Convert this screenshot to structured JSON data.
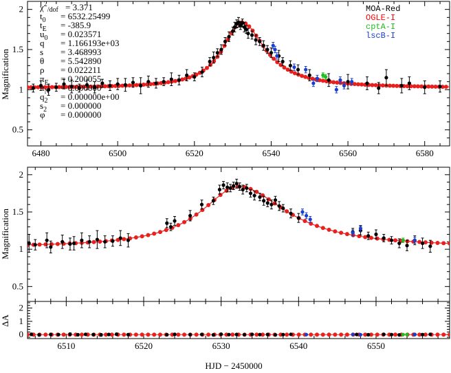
{
  "xlabel": "HJD − 2450000",
  "colors": {
    "model": "#e8201e",
    "MOA-Red": "#000000",
    "OGLE-I": "#ff0000",
    "cptA-I": "#22bb22",
    "lscB-I": "#1a3fcc"
  },
  "params": [
    {
      "label": "χ²/dof",
      "sep": "=",
      "value": "3.371"
    },
    {
      "label": "t₀",
      "sep": "=",
      "value": "6532.25499"
    },
    {
      "label": "t_E",
      "sep": "=",
      "value": "-385.9"
    },
    {
      "label": "u₀",
      "sep": "=",
      "value": "0.023571"
    },
    {
      "label": "q",
      "sep": "=",
      "value": "1.166193e+03"
    },
    {
      "label": "s",
      "sep": "=",
      "value": "3.468993"
    },
    {
      "label": "θ",
      "sep": "=",
      "value": "5.542890"
    },
    {
      "label": "ρ",
      "sep": "=",
      "value": "0.022211"
    },
    {
      "label": "π_E",
      "sep": "=",
      "value": "0.200055"
    },
    {
      "label": "π_N",
      "sep": "=",
      "value": "0.000000"
    },
    {
      "label": "q₂",
      "sep": "=",
      "value": "0.000000e+00"
    },
    {
      "label": "s₂",
      "sep": "=",
      "value": "0.000000"
    },
    {
      "label": "φ",
      "sep": "=",
      "value": "0.000000"
    }
  ],
  "chart_data": [
    {
      "type": "scatter",
      "title": "",
      "xlabel": "",
      "ylabel": "Magnification",
      "xlim": [
        6476.5,
        6586.5
      ],
      "ylim": [
        0.3,
        2.1
      ],
      "x_ticks": [
        6480,
        6500,
        6520,
        6540,
        6560,
        6580
      ],
      "y_ticks": [
        0.5,
        1,
        1.5,
        2
      ],
      "y_tick_labels": [
        "0.5",
        "1",
        "1.5",
        "2"
      ],
      "legend": [
        "MOA-Red",
        "OGLE-I",
        "cptA-I",
        "lscB-I"
      ],
      "legend_position": "top-right",
      "model": {
        "t0": 6532.3,
        "peak": 1.84,
        "rise": 6.0,
        "fall": 7.5
      },
      "series": [
        {
          "name": "MOA-Red",
          "x": [
            6478,
            6480,
            6482,
            6484,
            6486,
            6488,
            6490,
            6492,
            6494,
            6496,
            6498,
            6500,
            6502,
            6504,
            6506,
            6508,
            6510,
            6512,
            6514,
            6516,
            6518,
            6520,
            6522,
            6524,
            6525,
            6526,
            6527,
            6528,
            6529,
            6530,
            6530.5,
            6531,
            6531.5,
            6532,
            6532.5,
            6533,
            6533.5,
            6534,
            6535,
            6536,
            6537,
            6538,
            6539,
            6540,
            6542,
            6543,
            6545,
            6547,
            6550,
            6555,
            6560,
            6565,
            6568,
            6570,
            6574,
            6576,
            6580,
            6584
          ],
          "y": [
            1.02,
            1.05,
            1.0,
            1.03,
            1.07,
            1.04,
            1.02,
            1.06,
            1.03,
            1.08,
            1.05,
            1.07,
            1.06,
            1.09,
            1.05,
            1.1,
            1.08,
            1.1,
            1.13,
            1.12,
            1.18,
            1.16,
            1.22,
            1.35,
            1.4,
            1.46,
            1.5,
            1.6,
            1.66,
            1.73,
            1.78,
            1.82,
            1.84,
            1.8,
            1.83,
            1.78,
            1.75,
            1.7,
            1.68,
            1.62,
            1.6,
            1.55,
            1.5,
            1.46,
            1.42,
            1.35,
            1.3,
            1.25,
            1.18,
            1.12,
            1.1,
            1.08,
            1.02,
            1.15,
            1.05,
            1.08,
            1.03,
            1.04
          ],
          "err": [
            0.05,
            0.06,
            0.07,
            0.05,
            0.06,
            0.08,
            0.05,
            0.06,
            0.07,
            0.05,
            0.06,
            0.07,
            0.08,
            0.06,
            0.1,
            0.07,
            0.06,
            0.05,
            0.08,
            0.06,
            0.07,
            0.05,
            0.06,
            0.05,
            0.07,
            0.05,
            0.06,
            0.05,
            0.06,
            0.05,
            0.06,
            0.05,
            0.06,
            0.05,
            0.05,
            0.06,
            0.05,
            0.06,
            0.05,
            0.06,
            0.05,
            0.06,
            0.05,
            0.06,
            0.07,
            0.05,
            0.06,
            0.06,
            0.07,
            0.08,
            0.09,
            0.08,
            0.07,
            0.1,
            0.09,
            0.08,
            0.08,
            0.07
          ]
        },
        {
          "name": "OGLE-I",
          "x": [],
          "y": [],
          "err": []
        },
        {
          "name": "cptA-I",
          "x": [
            6553.5,
            6554.2
          ],
          "y": [
            1.18,
            1.16
          ],
          "err": [
            0.03,
            0.03
          ]
        },
        {
          "name": "lscB-I",
          "x": [
            6540.5,
            6541,
            6541.5,
            6546,
            6549,
            6551,
            6552,
            6557,
            6558,
            6559,
            6561
          ],
          "y": [
            1.55,
            1.5,
            1.42,
            1.28,
            1.25,
            1.08,
            1.14,
            1.0,
            1.12,
            1.05,
            1.1
          ],
          "err": [
            0.04,
            0.04,
            0.04,
            0.04,
            0.04,
            0.04,
            0.04,
            0.04,
            0.04,
            0.04,
            0.04
          ]
        }
      ]
    },
    {
      "type": "scatter",
      "title": "",
      "xlabel": "",
      "ylabel": "Magnification",
      "xlim": [
        6505,
        6559.5
      ],
      "ylim": [
        0.3,
        2.1
      ],
      "x_ticks": [
        6510,
        6520,
        6530,
        6540,
        6550
      ],
      "y_ticks": [
        0.5,
        1,
        1.5,
        2
      ],
      "y_tick_labels": [
        "0.5",
        "1",
        "1.5",
        "2"
      ],
      "model": {
        "t0": 6532.3,
        "peak": 1.84,
        "rise": 6.0,
        "fall": 7.5
      },
      "series": [
        {
          "name": "MOA-Red",
          "x": [
            6505.2,
            6506,
            6507.5,
            6508,
            6509.5,
            6510.5,
            6511,
            6512,
            6513,
            6514,
            6515,
            6516,
            6517,
            6518,
            6523,
            6523.5,
            6524,
            6526,
            6527.5,
            6529,
            6529.8,
            6530.3,
            6530.8,
            6531.2,
            6531.6,
            6532,
            6532.4,
            6532.8,
            6533.3,
            6533.8,
            6534.3,
            6535,
            6535.5,
            6536,
            6536.5,
            6537,
            6537.5,
            6538,
            6539,
            6540,
            6547,
            6548,
            6549,
            6550,
            6551,
            6552,
            6553,
            6554,
            6555,
            6556,
            6557
          ],
          "y": [
            1.08,
            1.06,
            1.12,
            1.03,
            1.1,
            1.07,
            1.08,
            1.12,
            1.1,
            1.13,
            1.1,
            1.11,
            1.15,
            1.12,
            1.35,
            1.3,
            1.38,
            1.45,
            1.6,
            1.65,
            1.8,
            1.86,
            1.83,
            1.82,
            1.85,
            1.88,
            1.84,
            1.8,
            1.82,
            1.75,
            1.72,
            1.7,
            1.65,
            1.62,
            1.6,
            1.66,
            1.58,
            1.55,
            1.48,
            1.42,
            1.23,
            1.25,
            1.18,
            1.2,
            1.15,
            1.12,
            1.08,
            1.05,
            1.12,
            1.08,
            1.04
          ],
          "err": [
            0.12,
            0.07,
            0.1,
            0.08,
            0.09,
            0.08,
            0.09,
            0.1,
            0.08,
            0.12,
            0.08,
            0.07,
            0.1,
            0.09,
            0.06,
            0.05,
            0.06,
            0.07,
            0.06,
            0.05,
            0.06,
            0.05,
            0.06,
            0.05,
            0.05,
            0.06,
            0.05,
            0.06,
            0.05,
            0.05,
            0.06,
            0.05,
            0.06,
            0.05,
            0.06,
            0.05,
            0.06,
            0.05,
            0.06,
            0.06,
            0.05,
            0.06,
            0.05,
            0.06,
            0.05,
            0.05,
            0.06,
            0.07,
            0.06,
            0.07,
            0.08
          ]
        },
        {
          "name": "OGLE-I",
          "x": [],
          "y": [],
          "err": []
        },
        {
          "name": "cptA-I",
          "x": [
            6553.5
          ],
          "y": [
            1.12
          ],
          "err": [
            0.03
          ]
        },
        {
          "name": "lscB-I",
          "x": [
            6540.5,
            6541,
            6541.5,
            6547,
            6548,
            6555
          ],
          "y": [
            1.5,
            1.45,
            1.4,
            1.22,
            1.28,
            1.12
          ],
          "err": [
            0.04,
            0.04,
            0.04,
            0.04,
            0.04,
            0.04
          ]
        }
      ]
    },
    {
      "type": "scatter",
      "title": "",
      "xlabel": "HJD − 2450000",
      "ylabel": "ΔA",
      "xlim": [
        6505,
        6559.5
      ],
      "ylim": [
        -0.3,
        2.5
      ],
      "x_ticks": [
        6510,
        6520,
        6530,
        6540,
        6550
      ],
      "y_ticks": [
        0,
        1,
        2
      ],
      "y_tick_labels": [
        "0",
        "1",
        "2"
      ],
      "series": [
        {
          "name": "MOA-Red",
          "x": [
            6505.5,
            6506.5,
            6508,
            6509,
            6510.5,
            6511.5,
            6512.5,
            6513.5,
            6514.5,
            6515.5,
            6516.5,
            6518,
            6523,
            6524,
            6526,
            6527.5,
            6529,
            6530,
            6531,
            6532,
            6533,
            6534,
            6535,
            6536,
            6537,
            6538,
            6539,
            6547.5,
            6549,
            6551,
            6552,
            6553,
            6555,
            6556,
            6557
          ],
          "y": [
            0.02,
            -0.02,
            0.01,
            0.0,
            0.03,
            -0.01,
            0.02,
            0.0,
            -0.02,
            0.01,
            0.03,
            0.0,
            -0.01,
            0.02,
            0.0,
            0.01,
            -0.02,
            0.03,
            0.0,
            0.01,
            -0.01,
            0.02,
            0.0,
            0.01,
            -0.02,
            0.0,
            0.02,
            0.01,
            -0.01,
            0.02,
            0.0,
            -0.02,
            0.01,
            0.0,
            0.02
          ],
          "err": [
            0.1,
            0.08,
            0.09,
            0.08,
            0.1,
            0.09,
            0.08,
            0.09,
            0.1,
            0.08,
            0.09,
            0.08,
            0.07,
            0.08,
            0.07,
            0.06,
            0.07,
            0.06,
            0.06,
            0.06,
            0.06,
            0.07,
            0.06,
            0.07,
            0.06,
            0.07,
            0.06,
            0.07,
            0.08,
            0.07,
            0.08,
            0.07,
            0.08,
            0.09,
            0.08
          ]
        },
        {
          "name": "OGLE-I",
          "x": [],
          "y": [],
          "err": []
        },
        {
          "name": "cptA-I",
          "x": [
            6553.5,
            6554
          ],
          "y": [
            0.0,
            0.0
          ],
          "err": [
            0.03,
            0.03
          ]
        },
        {
          "name": "lscB-I",
          "x": [
            6541,
            6547,
            6548,
            6555
          ],
          "y": [
            0.0,
            0.01,
            -0.01,
            0.0
          ],
          "err": [
            0.04,
            0.04,
            0.04,
            0.04
          ]
        }
      ]
    }
  ]
}
